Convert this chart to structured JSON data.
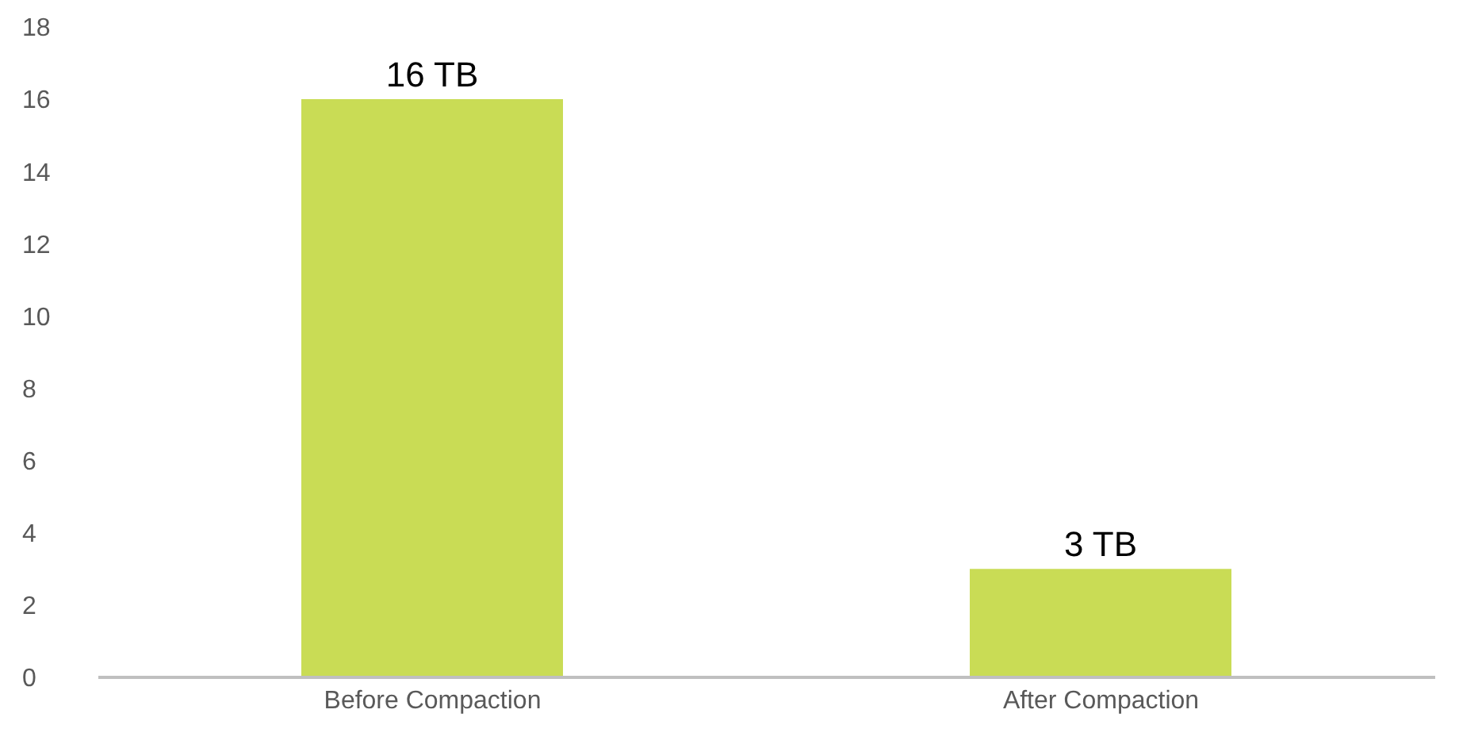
{
  "chart_data": {
    "type": "bar",
    "categories": [
      "Before  Compaction",
      "After Compaction"
    ],
    "values": [
      16,
      3
    ],
    "color": "#c9dc55",
    "value_labels": [
      "16 TB",
      "3 TB"
    ],
    "ylim": [
      0,
      18
    ],
    "yticks": [
      0,
      2,
      4,
      6,
      8,
      10,
      12,
      14,
      16,
      18
    ],
    "grid": false,
    "legend": false
  }
}
